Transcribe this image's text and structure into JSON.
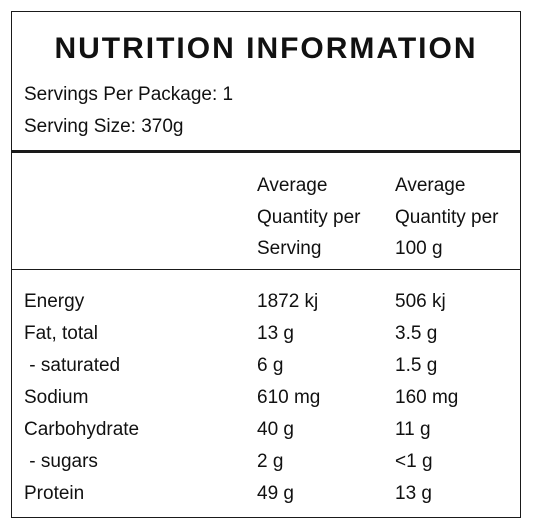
{
  "title": "NUTRITION INFORMATION",
  "servings_per_package": "Servings Per Package: 1",
  "serving_size": "Serving Size: 370g",
  "columns": {
    "per_serving": [
      "Average",
      "Quantity per",
      "Serving"
    ],
    "per_100g": [
      "Average",
      "Quantity per",
      "100 g"
    ]
  },
  "rows": [
    {
      "name": "Energy",
      "per_serving": "1872 kj",
      "per_100g": "506 kj"
    },
    {
      "name": "Fat, total",
      "per_serving": "13 g",
      "per_100g": "3.5 g"
    },
    {
      "name": " - saturated",
      "per_serving": "6 g",
      "per_100g": "1.5 g"
    },
    {
      "name": "Sodium",
      "per_serving": "610 mg",
      "per_100g": "160 mg"
    },
    {
      "name": "Carbohydrate",
      "per_serving": "40 g",
      "per_100g": "11 g"
    },
    {
      "name": " - sugars",
      "per_serving": "2 g",
      "per_100g": "<1 g"
    },
    {
      "name": "Protein",
      "per_serving": "49 g",
      "per_100g": "13 g"
    }
  ]
}
